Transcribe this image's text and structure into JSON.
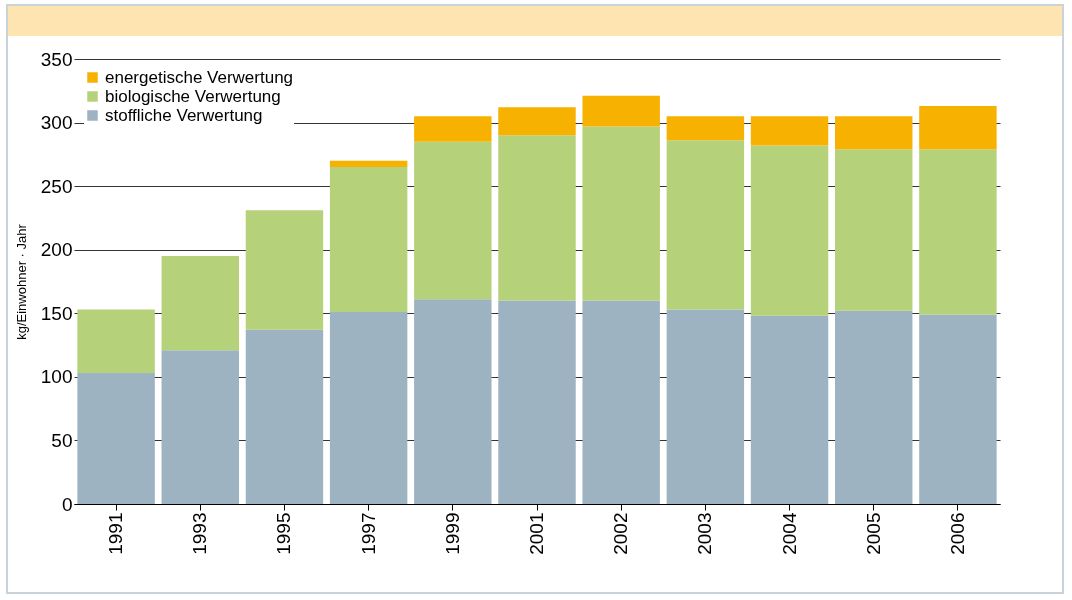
{
  "chart_data": {
    "type": "bar",
    "stacked": true,
    "ylabel": "kg/Einwohner · Jahr",
    "categories": [
      "1991",
      "1993",
      "1995",
      "1997",
      "1999",
      "2001",
      "2002",
      "2003",
      "2004",
      "2005",
      "2006"
    ],
    "series": [
      {
        "name": "stoffliche Verwertung",
        "color": "#9db3c2",
        "values": [
          103,
          121,
          137,
          151,
          161,
          160,
          160,
          153,
          148,
          152,
          149
        ]
      },
      {
        "name": "biologische Verwertung",
        "color": "#b5d17a",
        "values": [
          50,
          74,
          94,
          114,
          124,
          130,
          137,
          133,
          134,
          127,
          130
        ]
      },
      {
        "name": "energetische Verwertung",
        "color": "#f7b100",
        "values": [
          null,
          null,
          null,
          5,
          20,
          22,
          24,
          19,
          23,
          26,
          34
        ]
      }
    ],
    "ylim": [
      0,
      350
    ],
    "yticks": [
      0,
      50,
      100,
      150,
      200,
      250,
      300,
      350
    ],
    "grid": "y",
    "legend": "top left"
  }
}
